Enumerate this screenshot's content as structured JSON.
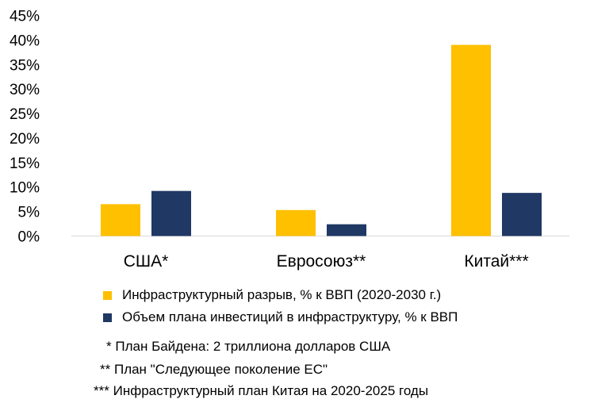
{
  "chart_data": {
    "type": "bar",
    "categories": [
      "США*",
      "Евросоюз**",
      "Китай***"
    ],
    "series": [
      {
        "name": "Инфраструктурный разрыв, % к ВВП (2020-2030 г.)",
        "values": [
          6.5,
          5.3,
          39.0
        ],
        "color": "#FFC000"
      },
      {
        "name": "Объем плана инвестиций в инфраструктуру, % к ВВП",
        "values": [
          9.2,
          2.4,
          8.8
        ],
        "color": "#1F3864"
      }
    ],
    "yticks": [
      "0%",
      "5%",
      "10%",
      "15%",
      "20%",
      "25%",
      "30%",
      "35%",
      "40%",
      "45%"
    ],
    "ylim": [
      0,
      45
    ],
    "grid": false,
    "legend_position": "bottom"
  },
  "footnotes": [
    {
      "marker": "*",
      "text": "План Байдена: 2 триллиона долларов США"
    },
    {
      "marker": "**",
      "text": "План \"Следующее поколение ЕС\""
    },
    {
      "marker": "***",
      "text": "Инфраструктурный план Китая на 2020-2025 годы"
    }
  ]
}
